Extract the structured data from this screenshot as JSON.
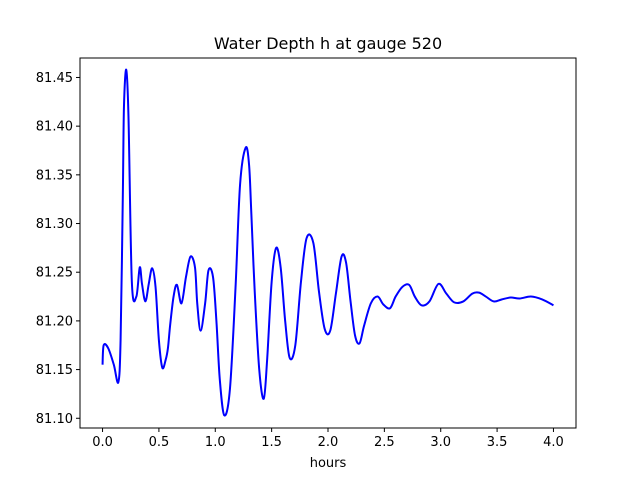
{
  "chart_data": {
    "type": "line",
    "title": "Water Depth h at gauge 520",
    "xlabel": "hours",
    "ylabel": "",
    "xlim": [
      -0.2,
      4.2
    ],
    "ylim": [
      81.09,
      81.47
    ],
    "xticks": [
      0.0,
      0.5,
      1.0,
      1.5,
      2.0,
      2.5,
      3.0,
      3.5,
      4.0
    ],
    "xtick_labels": [
      "0.0",
      "0.5",
      "1.0",
      "1.5",
      "2.0",
      "2.5",
      "3.0",
      "3.5",
      "4.0"
    ],
    "yticks": [
      81.1,
      81.15,
      81.2,
      81.25,
      81.3,
      81.35,
      81.4,
      81.45
    ],
    "ytick_labels": [
      "81.10",
      "81.15",
      "81.20",
      "81.25",
      "81.30",
      "81.35",
      "81.40",
      "81.45"
    ],
    "grid": false,
    "series": [
      {
        "color": "#0000ff",
        "x": [
          0.0,
          0.01,
          0.05,
          0.1,
          0.14,
          0.16,
          0.18,
          0.19,
          0.21,
          0.23,
          0.26,
          0.3,
          0.33,
          0.35,
          0.38,
          0.41,
          0.44,
          0.47,
          0.5,
          0.53,
          0.56,
          0.58,
          0.6,
          0.63,
          0.66,
          0.7,
          0.74,
          0.78,
          0.82,
          0.84,
          0.87,
          0.91,
          0.94,
          0.98,
          1.01,
          1.04,
          1.08,
          1.13,
          1.18,
          1.22,
          1.27,
          1.3,
          1.32,
          1.35,
          1.39,
          1.43,
          1.46,
          1.5,
          1.54,
          1.58,
          1.62,
          1.66,
          1.71,
          1.76,
          1.81,
          1.87,
          1.92,
          1.97,
          2.02,
          2.07,
          2.12,
          2.16,
          2.2,
          2.24,
          2.28,
          2.32,
          2.38,
          2.44,
          2.49,
          2.55,
          2.6,
          2.66,
          2.72,
          2.77,
          2.83,
          2.9,
          2.98,
          3.05,
          3.12,
          3.2,
          3.28,
          3.34,
          3.4,
          3.47,
          3.54,
          3.62,
          3.7,
          3.8,
          3.9,
          4.0
        ],
        "y": [
          81.155,
          81.175,
          81.172,
          81.155,
          81.137,
          81.18,
          81.33,
          81.42,
          81.458,
          81.41,
          81.24,
          81.225,
          81.255,
          81.238,
          81.22,
          81.238,
          81.254,
          81.235,
          81.18,
          81.152,
          81.16,
          81.172,
          81.196,
          81.225,
          81.237,
          81.218,
          81.245,
          81.266,
          81.255,
          81.218,
          81.19,
          81.218,
          81.252,
          81.245,
          81.2,
          81.14,
          81.103,
          81.13,
          81.235,
          81.34,
          81.378,
          81.36,
          81.31,
          81.23,
          81.15,
          81.12,
          81.16,
          81.24,
          81.275,
          81.255,
          81.2,
          81.162,
          81.175,
          81.24,
          81.285,
          81.28,
          81.23,
          81.192,
          81.19,
          81.228,
          81.266,
          81.26,
          81.22,
          81.185,
          81.177,
          81.195,
          81.218,
          81.225,
          81.217,
          81.213,
          81.225,
          81.235,
          81.237,
          81.225,
          81.216,
          81.22,
          81.238,
          81.228,
          81.219,
          81.22,
          81.228,
          81.229,
          81.225,
          81.22,
          81.222,
          81.224,
          81.223,
          81.225,
          81.222,
          81.216
        ]
      }
    ]
  }
}
